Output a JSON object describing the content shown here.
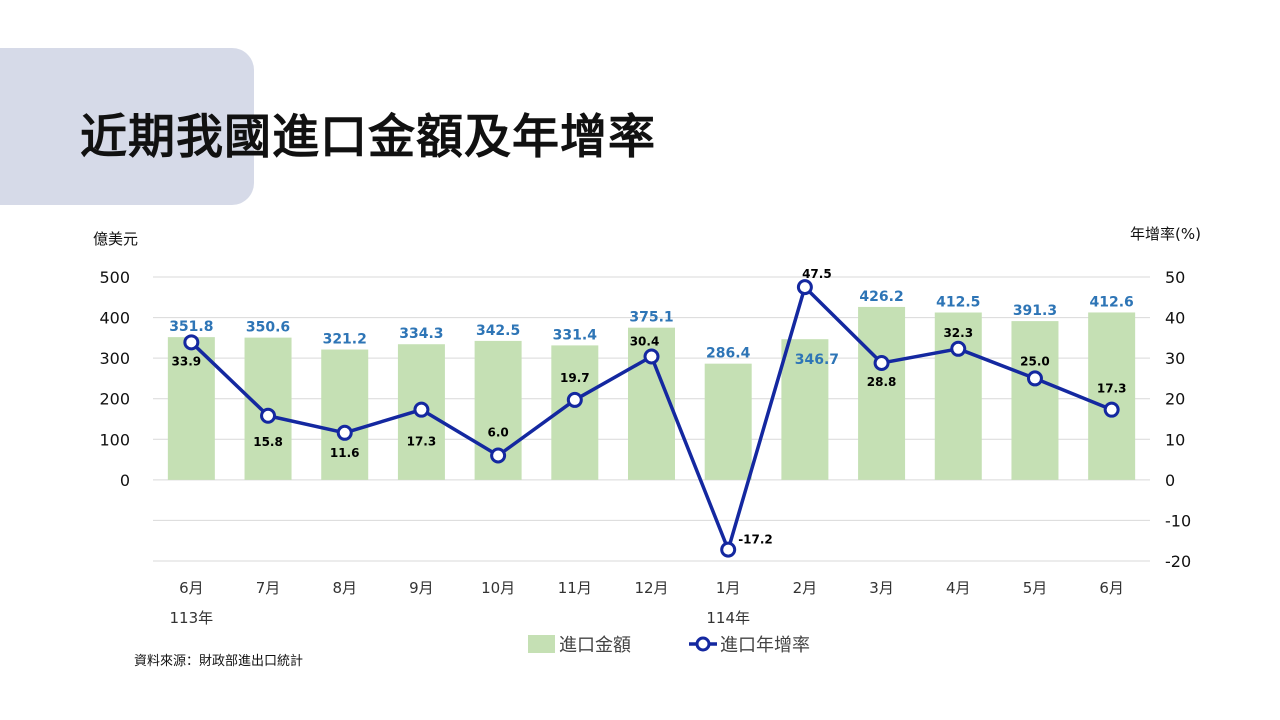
{
  "title": "近期我國進口金額及年增率",
  "source": "資料來源：財政部進出口統計",
  "chart_data": {
    "type": "bar+line",
    "y_left_label": "億美元",
    "y_right_label": "年增率(%)",
    "y_left_ticks": [
      0,
      100,
      200,
      300,
      400,
      500
    ],
    "y_right_ticks": [
      -20,
      -10,
      0,
      10,
      20,
      30,
      40,
      50
    ],
    "y_left_range": [
      -200,
      500
    ],
    "y_right_range": [
      -20,
      50
    ],
    "categories": [
      "6月",
      "7月",
      "8月",
      "9月",
      "10月",
      "11月",
      "12月",
      "1月",
      "2月",
      "3月",
      "4月",
      "5月",
      "6月"
    ],
    "year_labels": [
      {
        "index": 0,
        "label": "113年"
      },
      {
        "index": 7,
        "label": "114年"
      }
    ],
    "series": [
      {
        "name": "進口金額",
        "type": "bar",
        "axis": "left",
        "color": "#c5e0b4",
        "label_color": "#2e75b6",
        "values": [
          351.8,
          350.6,
          321.2,
          334.3,
          342.5,
          331.4,
          375.1,
          286.4,
          346.7,
          426.2,
          412.5,
          391.3,
          412.6
        ]
      },
      {
        "name": "進口年增率",
        "type": "line",
        "axis": "right",
        "color": "#1428a0",
        "label_color": "#000000",
        "values": [
          33.9,
          15.8,
          11.6,
          17.3,
          6.0,
          19.7,
          30.4,
          -17.2,
          47.5,
          28.8,
          32.3,
          25.0,
          17.3
        ]
      }
    ],
    "grid": true,
    "legend": "bottom"
  }
}
